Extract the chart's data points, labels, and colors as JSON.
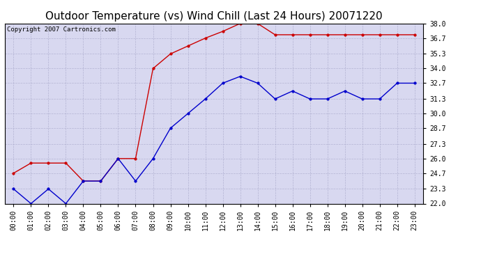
{
  "title": "Outdoor Temperature (vs) Wind Chill (Last 24 Hours) 20071220",
  "copyright": "Copyright 2007 Cartronics.com",
  "x_labels": [
    "00:00",
    "01:00",
    "02:00",
    "03:00",
    "04:00",
    "05:00",
    "06:00",
    "07:00",
    "08:00",
    "09:00",
    "10:00",
    "11:00",
    "12:00",
    "13:00",
    "14:00",
    "15:00",
    "16:00",
    "17:00",
    "18:00",
    "19:00",
    "20:00",
    "21:00",
    "22:00",
    "23:00"
  ],
  "red_y": [
    24.7,
    25.6,
    25.6,
    25.6,
    24.0,
    24.0,
    26.0,
    26.0,
    34.0,
    35.3,
    36.0,
    36.7,
    37.3,
    38.0,
    38.0,
    37.0,
    37.0,
    37.0,
    37.0,
    37.0,
    37.0,
    37.0,
    37.0,
    37.0
  ],
  "blue_y": [
    23.3,
    22.0,
    23.3,
    22.0,
    24.0,
    24.0,
    26.0,
    24.0,
    26.0,
    28.7,
    30.0,
    31.3,
    32.7,
    33.3,
    32.7,
    31.3,
    32.0,
    31.3,
    31.3,
    32.0,
    31.3,
    31.3,
    32.7,
    32.7
  ],
  "ylim": [
    22.0,
    38.0
  ],
  "yticks": [
    22.0,
    23.3,
    24.7,
    26.0,
    27.3,
    28.7,
    30.0,
    31.3,
    32.7,
    34.0,
    35.3,
    36.7,
    38.0
  ],
  "red_color": "#cc0000",
  "blue_color": "#0000cc",
  "bg_color": "#ffffff",
  "plot_bg_color": "#d8d8f0",
  "grid_color": "#aaaacc",
  "title_fontsize": 11,
  "axis_fontsize": 7,
  "copyright_fontsize": 6.5
}
